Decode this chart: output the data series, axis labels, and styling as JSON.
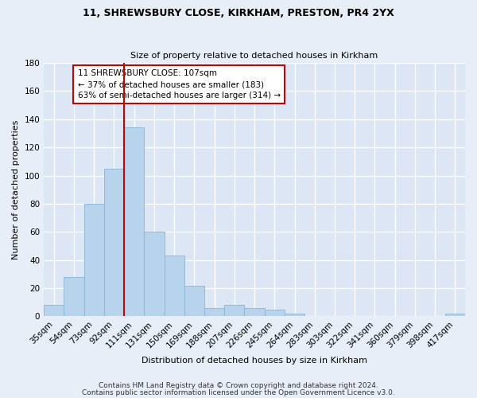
{
  "title": "11, SHREWSBURY CLOSE, KIRKHAM, PRESTON, PR4 2YX",
  "subtitle": "Size of property relative to detached houses in Kirkham",
  "xlabel": "Distribution of detached houses by size in Kirkham",
  "ylabel": "Number of detached properties",
  "bar_labels": [
    "35sqm",
    "54sqm",
    "73sqm",
    "92sqm",
    "111sqm",
    "131sqm",
    "150sqm",
    "169sqm",
    "188sqm",
    "207sqm",
    "226sqm",
    "245sqm",
    "264sqm",
    "283sqm",
    "303sqm",
    "322sqm",
    "341sqm",
    "360sqm",
    "379sqm",
    "398sqm",
    "417sqm"
  ],
  "bar_values": [
    8,
    28,
    80,
    105,
    134,
    60,
    43,
    22,
    6,
    8,
    6,
    5,
    2,
    0,
    0,
    0,
    0,
    0,
    0,
    0,
    2
  ],
  "bar_color": "#b8d4ec",
  "bar_edge_color": "#8ab4d4",
  "vline_color": "#cc0000",
  "annotation_text": "11 SHREWSBURY CLOSE: 107sqm\n← 37% of detached houses are smaller (183)\n63% of semi-detached houses are larger (314) →",
  "annotation_box_color": "#ffffff",
  "annotation_box_edge": "#cc0000",
  "ylim": [
    0,
    180
  ],
  "yticks": [
    0,
    20,
    40,
    60,
    80,
    100,
    120,
    140,
    160,
    180
  ],
  "footer1": "Contains HM Land Registry data © Crown copyright and database right 2024.",
  "footer2": "Contains public sector information licensed under the Open Government Licence v3.0.",
  "bg_color": "#e8eef8",
  "plot_bg_color": "#dce6f5",
  "grid_color": "#ffffff",
  "title_fontsize": 9,
  "subtitle_fontsize": 8,
  "axis_label_fontsize": 8,
  "tick_fontsize": 7.5,
  "annotation_fontsize": 7.5,
  "footer_fontsize": 6.5
}
